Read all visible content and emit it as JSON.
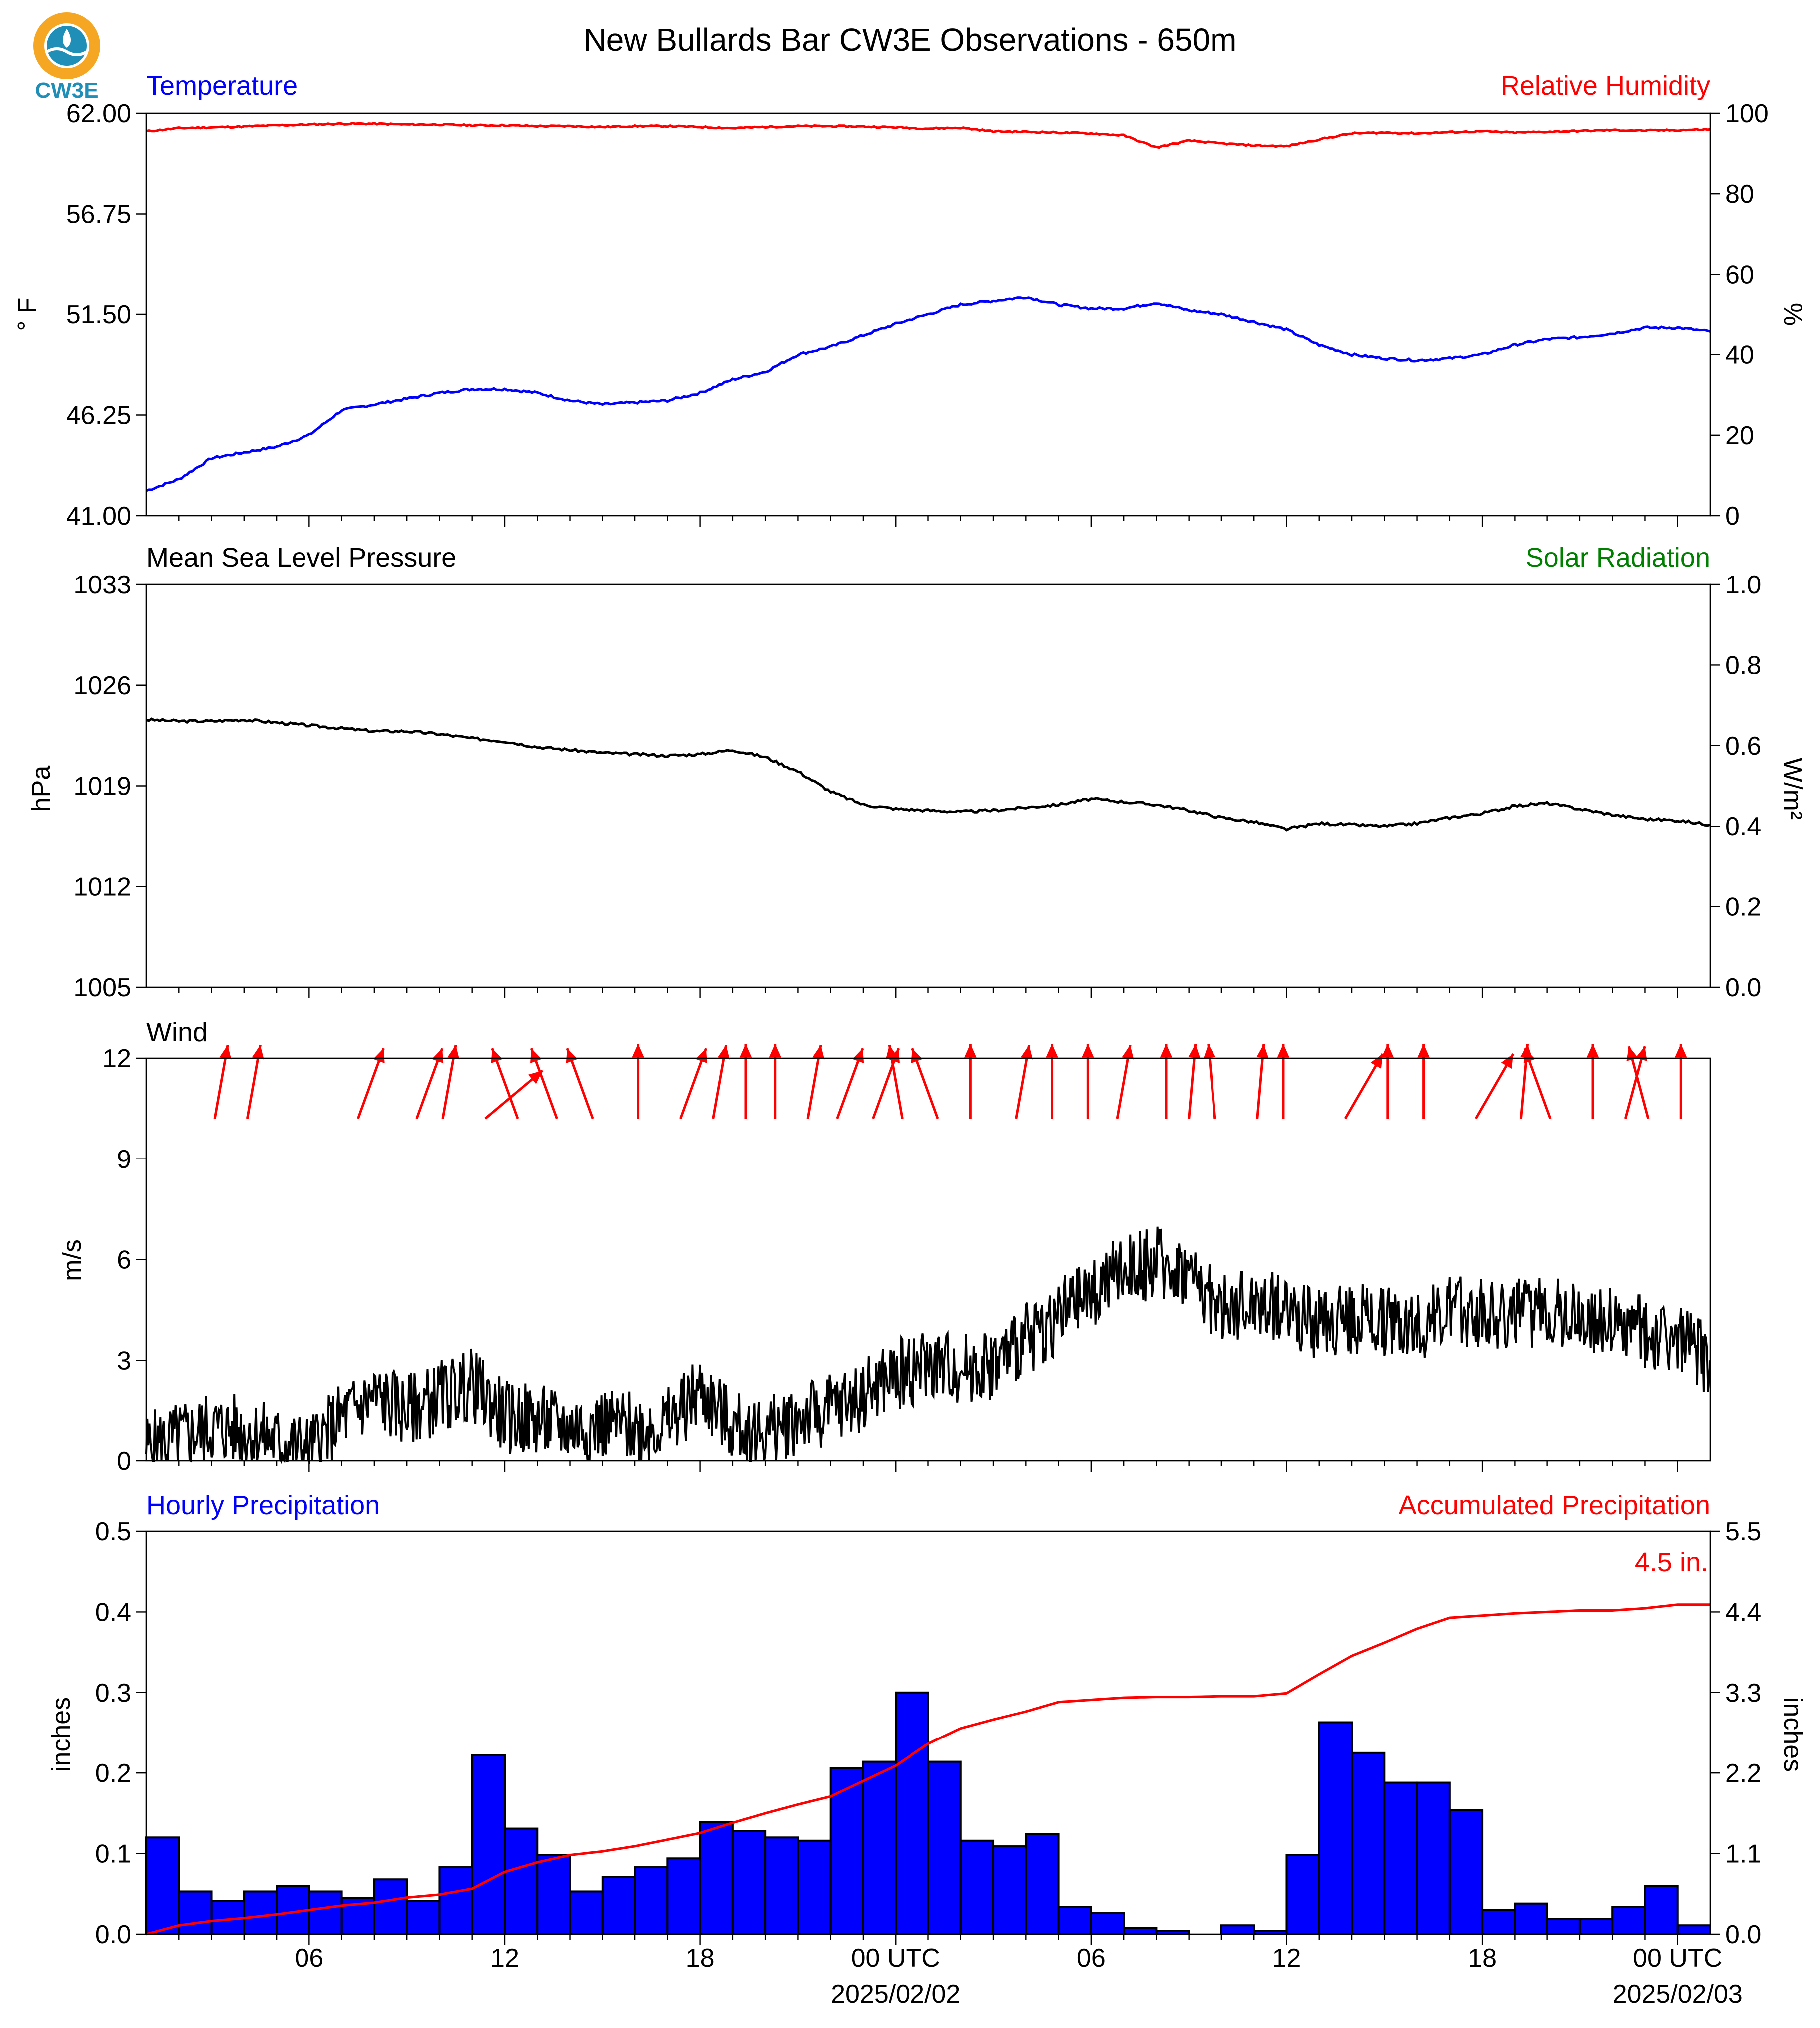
{
  "title": "New Bullards Bar CW3E Observations - 650m",
  "logo": {
    "text": "CW3E",
    "color_outer": "#f5a623",
    "color_inner": "#1f8fb8"
  },
  "colors": {
    "blue": "#0000ff",
    "red": "#ff0000",
    "green": "#008000",
    "black": "#000000"
  },
  "x_axis": {
    "range_hours": [
      0,
      48
    ],
    "ticks_hours": [
      5,
      11,
      17,
      23,
      29,
      35,
      41,
      47
    ],
    "tick_labels": [
      "06",
      "12",
      "18",
      "00 UTC",
      "06",
      "12",
      "18",
      "00 UTC"
    ],
    "date_labels": [
      {
        "hour": 23,
        "text": "2025/02/02"
      },
      {
        "hour": 47,
        "text": "2025/02/03"
      }
    ],
    "minor_every_hours": 1
  },
  "panels": {
    "temperature": {
      "left_label": "Temperature",
      "right_label": "Relative Humidity",
      "ylabel_left": "° F",
      "ylabel_right": "%",
      "left_ticks": [
        "41.00",
        "46.25",
        "51.50",
        "56.75",
        "62.00"
      ],
      "right_ticks": [
        "0",
        "20",
        "40",
        "60",
        "80",
        "100"
      ]
    },
    "pressure": {
      "left_label": "Mean Sea Level Pressure",
      "right_label": "Solar Radiation",
      "ylabel_left": "hPa",
      "ylabel_right": "W/m²",
      "left_ticks": [
        "1005",
        "1012",
        "1019",
        "1026",
        "1033"
      ],
      "right_ticks": [
        "0.0",
        "0.2",
        "0.4",
        "0.6",
        "0.8",
        "1.0"
      ]
    },
    "wind": {
      "left_label": "Wind",
      "ylabel_left": "m/s",
      "left_ticks": [
        "0",
        "3",
        "6",
        "9",
        "12"
      ]
    },
    "precip": {
      "left_label": "Hourly Precipitation",
      "right_label": "Accumulated Precipitation",
      "ylabel_left": "inches",
      "ylabel_right": "inches",
      "left_ticks": [
        "0.0",
        "0.1",
        "0.2",
        "0.3",
        "0.4",
        "0.5"
      ],
      "right_ticks": [
        "0.0",
        "1.1",
        "2.2",
        "3.3",
        "4.4",
        "5.5"
      ],
      "total_label": "4.5 in."
    }
  },
  "chart_data": [
    {
      "type": "line",
      "title": "Temperature / Relative Humidity",
      "x_units": "hours since start",
      "ylim": [
        41,
        62
      ],
      "y2lim": [
        0,
        100
      ],
      "series": [
        {
          "name": "Temperature",
          "axis": "left",
          "color": "#0000ff",
          "x": [
            0,
            1,
            2,
            3,
            4,
            5,
            6,
            7,
            8,
            9,
            10,
            11,
            12,
            13,
            14,
            15,
            16,
            17,
            18,
            19,
            20,
            21,
            22,
            23,
            24,
            25,
            26,
            27,
            28,
            29,
            30,
            31,
            32,
            33,
            34,
            35,
            36,
            37,
            38,
            39,
            40,
            41,
            42,
            43,
            44,
            45,
            46,
            47,
            48
          ],
          "y": [
            42.3,
            42.9,
            44.0,
            44.3,
            44.6,
            45.2,
            46.5,
            46.8,
            47.1,
            47.4,
            47.6,
            47.6,
            47.4,
            47.0,
            46.8,
            46.9,
            47.0,
            47.4,
            48.1,
            48.5,
            49.4,
            49.8,
            50.4,
            51.0,
            51.5,
            52.0,
            52.2,
            52.4,
            52.0,
            51.8,
            51.8,
            52.1,
            51.7,
            51.5,
            51.1,
            50.7,
            49.9,
            49.4,
            49.2,
            49.1,
            49.2,
            49.4,
            49.9,
            50.2,
            50.3,
            50.5,
            50.8,
            50.8,
            50.6
          ]
        },
        {
          "name": "Relative Humidity",
          "axis": "right",
          "color": "#ff0000",
          "x": [
            0,
            1,
            2,
            3,
            4,
            5,
            6,
            7,
            8,
            9,
            10,
            11,
            12,
            13,
            14,
            15,
            16,
            17,
            18,
            19,
            20,
            21,
            22,
            23,
            24,
            25,
            26,
            27,
            28,
            29,
            30,
            31,
            32,
            33,
            34,
            35,
            36,
            37,
            38,
            39,
            40,
            41,
            42,
            43,
            44,
            45,
            46,
            47,
            48
          ],
          "y": [
            95.5,
            96.3,
            96.5,
            96.7,
            97.0,
            97.2,
            97.4,
            97.4,
            97.2,
            97.2,
            97.0,
            97.0,
            96.8,
            96.8,
            96.6,
            96.8,
            96.8,
            96.6,
            96.3,
            96.6,
            96.8,
            96.8,
            96.7,
            96.5,
            96.2,
            96.4,
            95.5,
            95.4,
            95.2,
            95.0,
            94.5,
            91.5,
            93.2,
            92.5,
            92.0,
            91.8,
            93.5,
            95.0,
            95.2,
            95.0,
            95.3,
            95.5,
            95.2,
            95.4,
            95.6,
            95.8,
            95.7,
            95.8,
            96.0
          ]
        }
      ]
    },
    {
      "type": "line",
      "title": "Mean Sea Level Pressure",
      "x_units": "hours since start",
      "ylim": [
        1005,
        1033
      ],
      "y2lim": [
        0.0,
        1.0
      ],
      "series": [
        {
          "name": "Mean Sea Level Pressure",
          "axis": "left",
          "color": "#000000",
          "x": [
            0,
            1,
            2,
            3,
            4,
            5,
            6,
            7,
            8,
            9,
            10,
            11,
            12,
            13,
            14,
            15,
            16,
            17,
            18,
            19,
            20,
            21,
            22,
            23,
            24,
            25,
            26,
            27,
            28,
            29,
            30,
            31,
            32,
            33,
            34,
            35,
            36,
            37,
            38,
            39,
            40,
            41,
            42,
            43,
            44,
            45,
            46,
            47,
            48
          ],
          "y": [
            1023.6,
            1023.5,
            1023.5,
            1023.6,
            1023.4,
            1023.2,
            1023.0,
            1022.8,
            1022.8,
            1022.6,
            1022.3,
            1022.1,
            1021.7,
            1021.5,
            1021.3,
            1021.2,
            1021.1,
            1021.2,
            1021.5,
            1021.0,
            1020.0,
            1018.6,
            1017.7,
            1017.4,
            1017.3,
            1017.2,
            1017.3,
            1017.5,
            1017.7,
            1018.1,
            1017.9,
            1017.7,
            1017.3,
            1016.8,
            1016.5,
            1016.0,
            1016.4,
            1016.3,
            1016.2,
            1016.4,
            1016.8,
            1017.1,
            1017.6,
            1017.8,
            1017.4,
            1017.0,
            1016.7,
            1016.6,
            1016.3
          ]
        }
      ]
    },
    {
      "type": "line",
      "title": "Wind",
      "x_units": "hours since start",
      "ylim": [
        0,
        12
      ],
      "series": [
        {
          "name": "Wind",
          "axis": "left",
          "color": "#000000",
          "x": [
            0,
            1,
            2,
            3,
            4,
            5,
            6,
            7,
            8,
            9,
            10,
            11,
            12,
            13,
            14,
            15,
            16,
            17,
            18,
            19,
            20,
            21,
            22,
            23,
            24,
            25,
            26,
            27,
            28,
            29,
            30,
            31,
            32,
            33,
            34,
            35,
            36,
            37,
            38,
            39,
            40,
            41,
            42,
            43,
            44,
            45,
            46,
            47,
            48
          ],
          "y": [
            0.4,
            0.7,
            1.0,
            0.9,
            0.6,
            0.3,
            1.3,
            1.9,
            1.5,
            1.9,
            2.3,
            1.3,
            1.2,
            1.0,
            1.1,
            1.0,
            1.1,
            2.1,
            1.0,
            0.8,
            1.3,
            1.5,
            2.0,
            2.6,
            2.9,
            2.8,
            2.9,
            3.6,
            4.3,
            5.0,
            5.7,
            5.9,
            5.6,
            4.5,
            4.7,
            4.6,
            4.0,
            4.3,
            4.2,
            4.1,
            4.4,
            4.5,
            4.3,
            4.6,
            4.3,
            4.1,
            3.8,
            3.6,
            3.0
          ]
        }
      ],
      "arrows": {
        "x": [
          2.1,
          3.1,
          6.5,
          8.3,
          9.1,
          10.4,
          11.4,
          12.6,
          13.7,
          15.1,
          16.4,
          17.4,
          18.4,
          19.3,
          20.3,
          21.2,
          22.3,
          23.2,
          24.3,
          25.3,
          26.7,
          27.8,
          28.9,
          29.8,
          31.3,
          32.0,
          32.8,
          34.1,
          34.9,
          36.8,
          38.1,
          39.2,
          40.8,
          42.2,
          43.1,
          44.4,
          45.4,
          46.1,
          47.1
        ],
        "direction_deg": [
          190,
          190,
          200,
          200,
          190,
          230,
          160,
          160,
          160,
          180,
          200,
          190,
          180,
          180,
          190,
          200,
          200,
          170,
          160,
          180,
          190,
          180,
          180,
          190,
          180,
          185,
          175,
          185,
          180,
          210,
          180,
          180,
          210,
          185,
          160,
          180,
          195,
          165,
          180
        ]
      }
    },
    {
      "type": "bar",
      "title": "Hourly Precipitation / Accumulated Precipitation",
      "x_units": "hours since start",
      "ylim": [
        0.0,
        0.5
      ],
      "y2lim": [
        0.0,
        5.5
      ],
      "series": [
        {
          "name": "Hourly Precipitation",
          "axis": "left",
          "color": "#0000ff",
          "x": [
            0,
            1,
            2,
            3,
            4,
            5,
            6,
            7,
            8,
            9,
            10,
            11,
            12,
            13,
            14,
            15,
            16,
            17,
            18,
            19,
            20,
            21,
            22,
            23,
            24,
            25,
            26,
            27,
            28,
            29,
            30,
            31,
            32,
            33,
            34,
            35,
            36,
            37,
            38,
            39,
            40,
            41,
            42,
            43,
            44,
            45,
            46,
            47
          ],
          "values": [
            0.12,
            0.053,
            0.041,
            0.053,
            0.06,
            0.053,
            0.045,
            0.068,
            0.041,
            0.083,
            0.222,
            0.131,
            0.098,
            0.053,
            0.071,
            0.083,
            0.094,
            0.139,
            0.128,
            0.12,
            0.116,
            0.206,
            0.214,
            0.3,
            0.214,
            0.116,
            0.109,
            0.124,
            0.034,
            0.026,
            0.008,
            0.004,
            0.0,
            0.011,
            0.004,
            0.098,
            0.263,
            0.225,
            0.188,
            0.188,
            0.154,
            0.03,
            0.038,
            0.019,
            0.019,
            0.034,
            0.06,
            0.011
          ]
        },
        {
          "name": "Accumulated Precipitation",
          "axis": "right",
          "color": "#ff0000",
          "type": "line",
          "x": [
            0,
            1,
            2,
            3,
            4,
            5,
            6,
            7,
            8,
            9,
            10,
            11,
            12,
            13,
            14,
            15,
            16,
            17,
            18,
            19,
            20,
            21,
            22,
            23,
            24,
            25,
            26,
            27,
            28,
            29,
            30,
            31,
            32,
            33,
            34,
            35,
            36,
            37,
            38,
            39,
            40,
            41,
            42,
            43,
            44,
            45,
            46,
            47,
            48
          ],
          "y": [
            0.0,
            0.12,
            0.18,
            0.22,
            0.27,
            0.33,
            0.39,
            0.43,
            0.5,
            0.54,
            0.62,
            0.85,
            0.98,
            1.08,
            1.13,
            1.2,
            1.29,
            1.38,
            1.52,
            1.65,
            1.77,
            1.88,
            2.09,
            2.3,
            2.6,
            2.81,
            2.93,
            3.04,
            3.17,
            3.2,
            3.23,
            3.24,
            3.24,
            3.25,
            3.25,
            3.29,
            3.55,
            3.8,
            3.98,
            4.17,
            4.32,
            4.35,
            4.38,
            4.4,
            4.42,
            4.42,
            4.45,
            4.5,
            4.5
          ]
        }
      ]
    }
  ]
}
